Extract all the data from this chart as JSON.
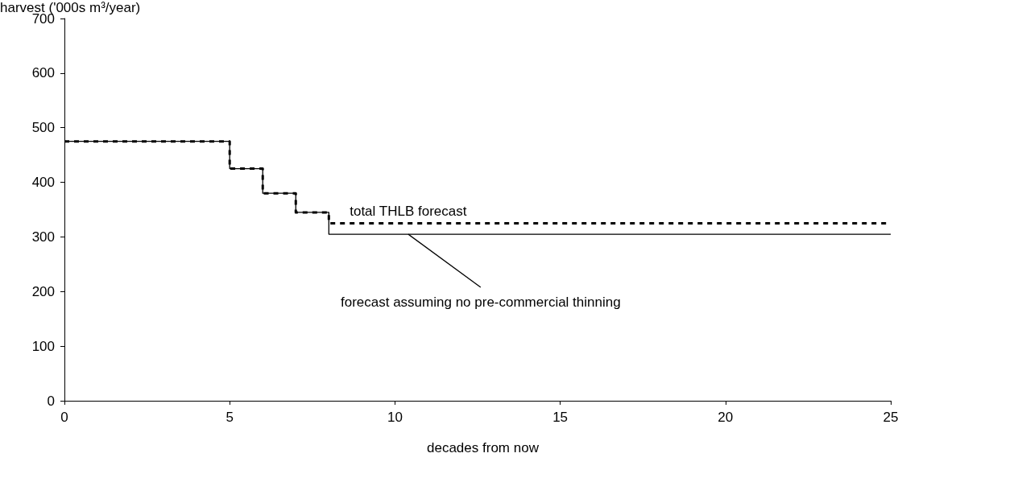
{
  "chart_data": {
    "type": "step",
    "xlabel": "decades from now",
    "ylabel": "harvest ('000s m³/year)",
    "xlim": [
      0,
      25
    ],
    "xticks": [
      0,
      5,
      10,
      15,
      20,
      25
    ],
    "ylim": [
      0,
      700
    ],
    "yticks": [
      0,
      100,
      200,
      300,
      400,
      500,
      600,
      700
    ],
    "grid": false,
    "marker": "none",
    "series": [
      {
        "color": "#000000",
        "line_style": "solid",
        "x": [
          0,
          5,
          6,
          7,
          8,
          25
        ],
        "values": [
          475,
          425,
          380,
          345,
          305,
          305
        ]
      },
      {
        "color": "#000000",
        "line_style": "dashed",
        "x": [
          0,
          5,
          6,
          7,
          8,
          25
        ],
        "values": [
          475,
          425,
          380,
          345,
          325,
          325
        ]
      }
    ],
    "annotations": [
      {
        "text": "total THLB forecast",
        "x": 10.4,
        "y": 325
      },
      {
        "text": "forecast assuming no pre-commercial thinning",
        "x": 10.4,
        "y": 305
      }
    ]
  }
}
